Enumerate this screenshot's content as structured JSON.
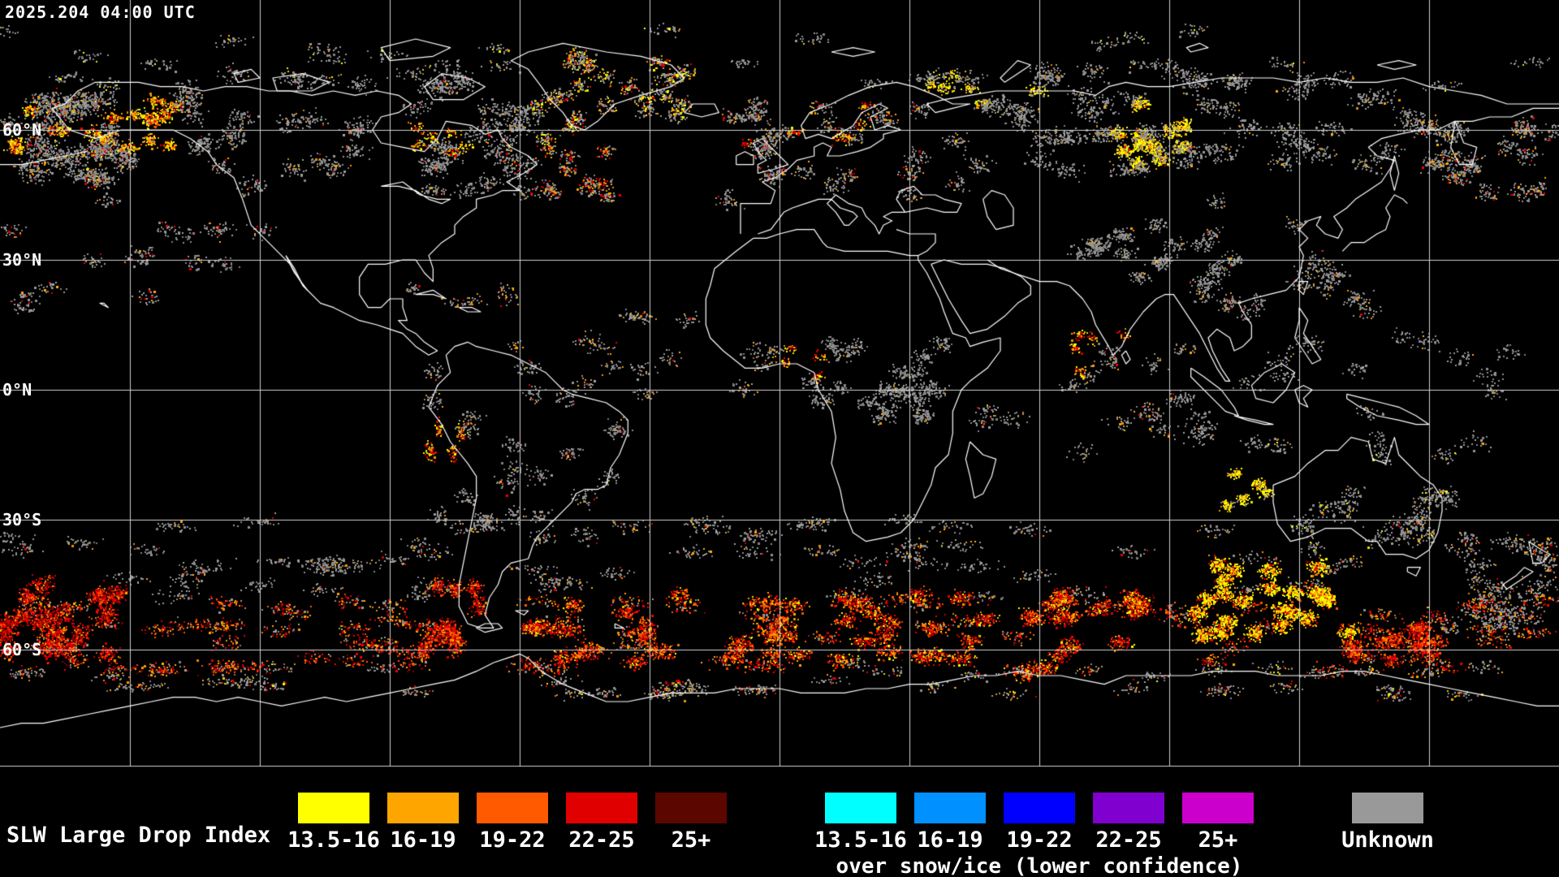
{
  "header": {
    "timestamp": "2025.204 04:00 UTC"
  },
  "map": {
    "background": "#000000",
    "coastline_color": "#ffffff",
    "grid": {
      "color": "#d0d0d0",
      "lon_step_deg": 30,
      "lat_step_deg": 30
    },
    "lat_labels": [
      {
        "text": "60°N",
        "lat": 60
      },
      {
        "text": "30°N",
        "lat": 30
      },
      {
        "text": "0°N",
        "lat": 0
      },
      {
        "text": "30°S",
        "lat": -30
      },
      {
        "text": "60°S",
        "lat": -60
      }
    ],
    "palette": {
      "gray": "#8e8e8e",
      "yellow": "#ffff00",
      "orange": "#ffa000",
      "deeporange": "#ff5200",
      "red": "#e00000",
      "darkred": "#7a0000"
    },
    "data_regions": [
      {
        "name": "bering-gray",
        "lon": [
          -180,
          -150
        ],
        "lat": [
          48,
          68
        ],
        "clusters": 35,
        "points": 50,
        "sx": 2.2,
        "sy": 1.6,
        "colors": {
          "gray": 0.85,
          "orange": 0.08,
          "red": 0.05,
          "yellow": 0.02
        }
      },
      {
        "name": "alaska-color",
        "lon": [
          -178,
          -135
        ],
        "lat": [
          54,
          68
        ],
        "clusters": 16,
        "points": 55,
        "sx": 1.6,
        "sy": 1.1,
        "colors": {
          "yellow": 0.3,
          "orange": 0.35,
          "red": 0.2,
          "deeporange": 0.1,
          "gray": 0.05
        }
      },
      {
        "name": "canada-gray",
        "lon": [
          -138,
          -58
        ],
        "lat": [
          46,
          74
        ],
        "clusters": 50,
        "points": 40,
        "sx": 2.4,
        "sy": 1.5,
        "colors": {
          "gray": 0.93,
          "orange": 0.04,
          "red": 0.03
        }
      },
      {
        "name": "greenland-patches",
        "lon": [
          -60,
          -18
        ],
        "lat": [
          58,
          78
        ],
        "clusters": 22,
        "points": 45,
        "sx": 1.8,
        "sy": 1.3,
        "colors": {
          "gray": 0.55,
          "yellow": 0.15,
          "orange": 0.18,
          "red": 0.12
        }
      },
      {
        "name": "nw-atlantic",
        "lon": [
          -58,
          -38
        ],
        "lat": [
          44,
          56
        ],
        "clusters": 10,
        "points": 35,
        "sx": 1.6,
        "sy": 1.2,
        "colors": {
          "gray": 0.5,
          "red": 0.25,
          "orange": 0.25
        }
      },
      {
        "name": "europe-gray",
        "lon": [
          -12,
          42
        ],
        "lat": [
          44,
          68
        ],
        "clusters": 26,
        "points": 38,
        "sx": 2.0,
        "sy": 1.4,
        "colors": {
          "gray": 0.82,
          "orange": 0.12,
          "red": 0.06
        }
      },
      {
        "name": "wsiberia-yellow",
        "lon": [
          78,
          96
        ],
        "lat": [
          52,
          66
        ],
        "clusters": 12,
        "points": 80,
        "sx": 1.5,
        "sy": 1.1,
        "colors": {
          "yellow": 0.55,
          "orange": 0.25,
          "gray": 0.15,
          "red": 0.05
        }
      },
      {
        "name": "barents-yellow",
        "lon": [
          35,
          60
        ],
        "lat": [
          66,
          74
        ],
        "clusters": 6,
        "points": 40,
        "sx": 1.6,
        "sy": 0.9,
        "colors": {
          "yellow": 0.5,
          "orange": 0.3,
          "gray": 0.2
        }
      },
      {
        "name": "siberia-gray",
        "lon": [
          42,
          150
        ],
        "lat": [
          50,
          74
        ],
        "clusters": 55,
        "points": 40,
        "sx": 2.6,
        "sy": 1.5,
        "colors": {
          "gray": 0.95,
          "orange": 0.05
        }
      },
      {
        "name": "kamchatka-gray",
        "lon": [
          148,
          180
        ],
        "lat": [
          45,
          65
        ],
        "clusters": 18,
        "points": 40,
        "sx": 2.0,
        "sy": 1.5,
        "colors": {
          "gray": 0.85,
          "orange": 0.1,
          "red": 0.05
        }
      },
      {
        "name": "npacific-sparse",
        "lon": [
          -180,
          -115
        ],
        "lat": [
          18,
          45
        ],
        "clusters": 16,
        "points": 25,
        "sx": 2.2,
        "sy": 1.4,
        "colors": {
          "gray": 0.85,
          "red": 0.1,
          "orange": 0.05
        }
      },
      {
        "name": "tibet-gray",
        "lon": [
          68,
          105
        ],
        "lat": [
          24,
          40
        ],
        "clusters": 16,
        "points": 40,
        "sx": 1.8,
        "sy": 1.2,
        "colors": {
          "gray": 0.97,
          "orange": 0.03
        }
      },
      {
        "name": "easia-gray",
        "lon": [
          95,
          140
        ],
        "lat": [
          15,
          45
        ],
        "clusters": 20,
        "points": 28,
        "sx": 2.0,
        "sy": 1.4,
        "colors": {
          "gray": 0.88,
          "orange": 0.08,
          "red": 0.04
        }
      },
      {
        "name": "africa-eq-gray",
        "lon": [
          5,
          40
        ],
        "lat": [
          -8,
          12
        ],
        "clusters": 22,
        "points": 38,
        "sx": 1.8,
        "sy": 1.4,
        "colors": {
          "gray": 0.97,
          "orange": 0.03
        }
      },
      {
        "name": "wafrica-dots",
        "lon": [
          -2,
          12
        ],
        "lat": [
          2,
          10
        ],
        "clusters": 4,
        "points": 20,
        "sx": 1.0,
        "sy": 0.8,
        "colors": {
          "orange": 0.5,
          "red": 0.3,
          "yellow": 0.2
        }
      },
      {
        "name": "atl-eq-gray",
        "lon": [
          -45,
          0
        ],
        "lat": [
          -5,
          18
        ],
        "clusters": 14,
        "points": 24,
        "sx": 2.2,
        "sy": 1.3,
        "colors": {
          "gray": 0.8,
          "orange": 0.15,
          "red": 0.05
        }
      },
      {
        "name": "samerica-gray",
        "lon": [
          -80,
          -36
        ],
        "lat": [
          -35,
          5
        ],
        "clusters": 24,
        "points": 32,
        "sx": 2.0,
        "sy": 1.5,
        "colors": {
          "gray": 0.93,
          "red": 0.04,
          "orange": 0.03
        }
      },
      {
        "name": "peru-dots",
        "lon": [
          -82,
          -72
        ],
        "lat": [
          -18,
          -8
        ],
        "clusters": 5,
        "points": 25,
        "sx": 0.8,
        "sy": 1.5,
        "colors": {
          "red": 0.4,
          "orange": 0.4,
          "yellow": 0.2
        }
      },
      {
        "name": "indian-gray",
        "lon": [
          45,
          100
        ],
        "lat": [
          -15,
          10
        ],
        "clusters": 16,
        "points": 26,
        "sx": 2.2,
        "sy": 1.4,
        "colors": {
          "gray": 0.85,
          "orange": 0.1,
          "red": 0.05
        }
      },
      {
        "name": "india-dots",
        "lon": [
          66,
          80
        ],
        "lat": [
          4,
          16
        ],
        "clusters": 5,
        "points": 22,
        "sx": 1.2,
        "sy": 1.0,
        "colors": {
          "orange": 0.5,
          "red": 0.3,
          "yellow": 0.2
        }
      },
      {
        "name": "maritime-gray",
        "lon": [
          95,
          170
        ],
        "lat": [
          -12,
          12
        ],
        "clusters": 20,
        "points": 24,
        "sx": 2.4,
        "sy": 1.4,
        "colors": {
          "gray": 0.95,
          "orange": 0.05
        }
      },
      {
        "name": "australia-gray",
        "lon": [
          112,
          155
        ],
        "lat": [
          -38,
          -12
        ],
        "clusters": 20,
        "points": 30,
        "sx": 2.2,
        "sy": 1.5,
        "colors": {
          "gray": 0.88,
          "yellow": 0.06,
          "orange": 0.06
        }
      },
      {
        "name": "nwaus-yellow",
        "lon": [
          103,
          113
        ],
        "lat": [
          -27,
          -19
        ],
        "clusters": 5,
        "points": 55,
        "sx": 1.2,
        "sy": 0.9,
        "colors": {
          "yellow": 0.55,
          "orange": 0.3,
          "gray": 0.15
        }
      },
      {
        "name": "s-midlat-band",
        "lon": [
          -180,
          180
        ],
        "lat": [
          -48,
          -30
        ],
        "clusters": 70,
        "points": 30,
        "sx": 3.5,
        "sy": 1.1,
        "colors": {
          "gray": 0.88,
          "orange": 0.09,
          "red": 0.03
        }
      },
      {
        "name": "s-ocean-band",
        "lon": [
          -180,
          180
        ],
        "lat": [
          -65,
          -48
        ],
        "clusters": 85,
        "points": 40,
        "sx": 3.2,
        "sy": 1.2,
        "colors": {
          "red": 0.28,
          "deeporange": 0.22,
          "orange": 0.2,
          "gray": 0.18,
          "darkred": 0.12
        }
      },
      {
        "name": "sepacific-red",
        "lon": [
          -180,
          -152
        ],
        "lat": [
          -62,
          -44
        ],
        "clusters": 20,
        "points": 85,
        "sx": 1.8,
        "sy": 1.5,
        "colors": {
          "red": 0.5,
          "darkred": 0.22,
          "deeporange": 0.2,
          "orange": 0.08
        }
      },
      {
        "name": "chile-red",
        "lon": [
          -84,
          -68
        ],
        "lat": [
          -60,
          -44
        ],
        "clusters": 12,
        "points": 65,
        "sx": 1.4,
        "sy": 1.6,
        "colors": {
          "red": 0.45,
          "deeporange": 0.3,
          "darkred": 0.15,
          "orange": 0.1
        }
      },
      {
        "name": "satlantic-mix",
        "lon": [
          -58,
          12
        ],
        "lat": [
          -63,
          -47
        ],
        "clusters": 28,
        "points": 65,
        "sx": 2.0,
        "sy": 1.3,
        "colors": {
          "red": 0.32,
          "deeporange": 0.28,
          "orange": 0.22,
          "darkred": 0.12,
          "yellow": 0.06
        }
      },
      {
        "name": "sindian-mix",
        "lon": [
          12,
          85
        ],
        "lat": [
          -66,
          -47
        ],
        "clusters": 34,
        "points": 75,
        "sx": 2.0,
        "sy": 1.3,
        "colors": {
          "red": 0.38,
          "deeporange": 0.24,
          "orange": 0.16,
          "darkred": 0.12,
          "yellow": 0.1
        }
      },
      {
        "name": "saus-yellow",
        "lon": [
          96,
          132
        ],
        "lat": [
          -57,
          -40
        ],
        "clusters": 24,
        "points": 95,
        "sx": 1.7,
        "sy": 1.3,
        "colors": {
          "yellow": 0.52,
          "orange": 0.24,
          "deeporange": 0.12,
          "red": 0.12
        }
      },
      {
        "name": "saus-red-streak",
        "lon": [
          128,
          152
        ],
        "lat": [
          -63,
          -52
        ],
        "clusters": 14,
        "points": 65,
        "sx": 1.8,
        "sy": 1.1,
        "colors": {
          "red": 0.45,
          "deeporange": 0.28,
          "darkred": 0.15,
          "orange": 0.12
        }
      },
      {
        "name": "nz-gray",
        "lon": [
          150,
          180
        ],
        "lat": [
          -55,
          -33
        ],
        "clusters": 18,
        "points": 35,
        "sx": 2.2,
        "sy": 1.4,
        "colors": {
          "gray": 0.78,
          "orange": 0.14,
          "red": 0.08
        }
      },
      {
        "name": "antarctic-fringe",
        "lon": [
          -180,
          180
        ],
        "lat": [
          -71,
          -63
        ],
        "clusters": 45,
        "points": 26,
        "sx": 3.0,
        "sy": 0.9,
        "colors": {
          "gray": 0.72,
          "orange": 0.14,
          "red": 0.1,
          "yellow": 0.04
        }
      },
      {
        "name": "hudson-dots",
        "lon": [
          -86,
          -68
        ],
        "lat": [
          54,
          64
        ],
        "clusters": 6,
        "points": 22,
        "sx": 1.4,
        "sy": 1.0,
        "colors": {
          "orange": 0.45,
          "red": 0.3,
          "yellow": 0.25
        }
      },
      {
        "name": "norwegian-dots",
        "lon": [
          -8,
          20
        ],
        "lat": [
          54,
          66
        ],
        "clusters": 6,
        "points": 20,
        "sx": 1.4,
        "sy": 1.0,
        "colors": {
          "orange": 0.5,
          "red": 0.3,
          "yellow": 0.2
        }
      },
      {
        "name": "arctic-gray",
        "lon": [
          -180,
          180
        ],
        "lat": [
          70,
          84
        ],
        "clusters": 30,
        "points": 25,
        "sx": 3.0,
        "sy": 1.0,
        "colors": {
          "gray": 0.9,
          "yellow": 0.05,
          "orange": 0.05
        }
      },
      {
        "name": "caribbean-dots",
        "lon": [
          -90,
          -60
        ],
        "lat": [
          8,
          24
        ],
        "clusters": 6,
        "points": 18,
        "sx": 1.6,
        "sy": 1.0,
        "colors": {
          "gray": 0.7,
          "orange": 0.2,
          "red": 0.1
        }
      }
    ]
  },
  "legend": {
    "title": "SLW Large Drop Index",
    "primary": {
      "entries": [
        {
          "label": "13.5-16",
          "color": "#ffff00"
        },
        {
          "label": "16-19",
          "color": "#ffa500"
        },
        {
          "label": "19-22",
          "color": "#ff5a00"
        },
        {
          "label": "22-25",
          "color": "#e00000"
        },
        {
          "label": "25+",
          "color": "#5c0600"
        }
      ]
    },
    "snow_ice": {
      "caption": "over snow/ice (lower confidence)",
      "entries": [
        {
          "label": "13.5-16",
          "color": "#00ffff"
        },
        {
          "label": "16-19",
          "color": "#0090ff"
        },
        {
          "label": "19-22",
          "color": "#0000ff"
        },
        {
          "label": "22-25",
          "color": "#8000d0"
        },
        {
          "label": "25+",
          "color": "#cc00cc"
        }
      ]
    },
    "unknown": {
      "label": "Unknown",
      "color": "#999999"
    }
  }
}
